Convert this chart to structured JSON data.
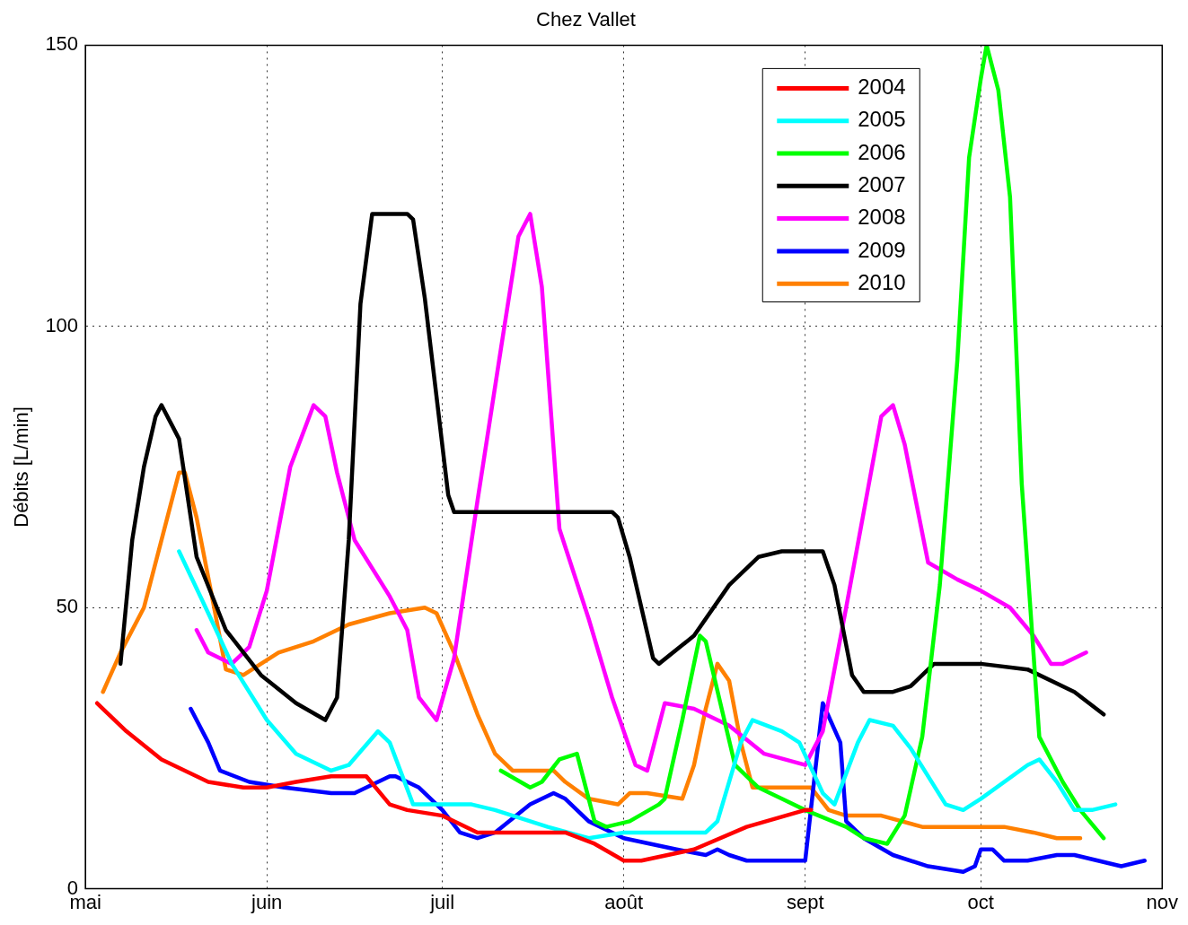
{
  "chart_data": {
    "type": "line",
    "title": "Chez Vallet",
    "ylabel": "Débits [L/min]",
    "xlim": [
      "--05-01",
      "--11-01"
    ],
    "xticks": [
      {
        "value": "--05-01",
        "label": "mai"
      },
      {
        "value": "--06-01",
        "label": "juin"
      },
      {
        "value": "--07-01",
        "label": "juil"
      },
      {
        "value": "--08-01",
        "label": "août"
      },
      {
        "value": "--09-01",
        "label": "sept"
      },
      {
        "value": "--10-01",
        "label": "oct"
      },
      {
        "value": "--11-01",
        "label": "nov"
      }
    ],
    "ylim": [
      0,
      150
    ],
    "yticks": [
      0,
      50,
      100,
      150
    ],
    "grid": true,
    "legend": "top right",
    "marker": "none",
    "line_style": "solid",
    "series": [
      {
        "name": "2004",
        "color": "#ff0000",
        "x": [
          "--05-03",
          "--05-08",
          "--05-14",
          "--05-22",
          "--05-28",
          "--06-01",
          "--06-06",
          "--06-12",
          "--06-18",
          "--06-22",
          "--06-25",
          "--07-01",
          "--07-07",
          "--07-16",
          "--07-22",
          "--07-27",
          "--08-01",
          "--08-04",
          "--08-13",
          "--08-22",
          "--09-01",
          "--09-02"
        ],
        "values": [
          33,
          28,
          23,
          19,
          18,
          18,
          19,
          20,
          20,
          15,
          14,
          13,
          10,
          10,
          10,
          8,
          5,
          5,
          7,
          11,
          14,
          14
        ]
      },
      {
        "name": "2005",
        "color": "#00ffff",
        "x": [
          "--05-17",
          "--05-22",
          "--05-26",
          "--06-01",
          "--06-06",
          "--06-12",
          "--06-15",
          "--06-20",
          "--06-22",
          "--06-26",
          "--07-01",
          "--07-06",
          "--07-10",
          "--07-19",
          "--07-26",
          "--08-01",
          "--08-10",
          "--08-15",
          "--08-17",
          "--08-21",
          "--08-23",
          "--08-28",
          "--08-31",
          "--09-04",
          "--09-06",
          "--09-10",
          "--09-12",
          "--09-16",
          "--09-19",
          "--09-25",
          "--09-28",
          "--10-01",
          "--10-09",
          "--10-11",
          "--10-14",
          "--10-17",
          "--10-20",
          "--10-24"
        ],
        "values": [
          60,
          49,
          40,
          30,
          24,
          21,
          22,
          28,
          26,
          15,
          15,
          15,
          14,
          11,
          9,
          10,
          10,
          10,
          12,
          26,
          30,
          28,
          26,
          17,
          15,
          26,
          30,
          29,
          25,
          15,
          14,
          16,
          22,
          23,
          19,
          14,
          14,
          15
        ]
      },
      {
        "name": "2006",
        "color": "#00ff00",
        "x": [
          "--07-11",
          "--07-16",
          "--07-18",
          "--07-21",
          "--07-24",
          "--07-27",
          "--07-29",
          "--08-02",
          "--08-07",
          "--08-08",
          "--08-11",
          "--08-14",
          "--08-15",
          "--08-20",
          "--08-24",
          "--08-28",
          "--09-01",
          "--09-08",
          "--09-11",
          "--09-15",
          "--09-18",
          "--09-21",
          "--09-24",
          "--09-27",
          "--09-29",
          "--10-01",
          "--10-02",
          "--10-04",
          "--10-06",
          "--10-08",
          "--10-11",
          "--10-15",
          "--10-18",
          "--10-22"
        ],
        "values": [
          21,
          18,
          19,
          23,
          24,
          12,
          11,
          12,
          15,
          16,
          30,
          45,
          44,
          22,
          18,
          16,
          14,
          11,
          9,
          8,
          13,
          27,
          54,
          94,
          130,
          144,
          150,
          142,
          123,
          72,
          27,
          19,
          14,
          9
        ]
      },
      {
        "name": "2007",
        "color": "#000000",
        "x": [
          "--05-07",
          "--05-09",
          "--05-11",
          "--05-13",
          "--05-14",
          "--05-17",
          "--05-20",
          "--05-25",
          "--05-31",
          "--06-06",
          "--06-11",
          "--06-13",
          "--06-15",
          "--06-17",
          "--06-19",
          "--06-25",
          "--06-26",
          "--06-28",
          "--07-02",
          "--07-03",
          "--07-30",
          "--07-31",
          "--08-02",
          "--08-06",
          "--08-07",
          "--08-13",
          "--08-19",
          "--08-24",
          "--08-28",
          "--09-04",
          "--09-06",
          "--09-09",
          "--09-11",
          "--09-16",
          "--09-19",
          "--09-23",
          "--10-01",
          "--10-09",
          "--10-17",
          "--10-22"
        ],
        "values": [
          40,
          62,
          75,
          84,
          86,
          80,
          59,
          46,
          38,
          33,
          30,
          34,
          62,
          104,
          120,
          120,
          119,
          105,
          70,
          67,
          67,
          66,
          59,
          41,
          40,
          45,
          54,
          59,
          60,
          60,
          54,
          38,
          35,
          35,
          36,
          40,
          40,
          39,
          35,
          31
        ]
      },
      {
        "name": "2008",
        "color": "#ff00ff",
        "x": [
          "--05-20",
          "--05-22",
          "--05-26",
          "--05-29",
          "--06-01",
          "--06-05",
          "--06-09",
          "--06-11",
          "--06-13",
          "--06-16",
          "--06-22",
          "--06-25",
          "--06-27",
          "--06-30",
          "--07-03",
          "--07-07",
          "--07-11",
          "--07-14",
          "--07-16",
          "--07-18",
          "--07-21",
          "--07-26",
          "--07-30",
          "--08-03",
          "--08-05",
          "--08-08",
          "--08-13",
          "--08-19",
          "--08-25",
          "--09-01",
          "--09-04",
          "--09-08",
          "--09-11",
          "--09-14",
          "--09-16",
          "--09-18",
          "--09-22",
          "--09-27",
          "--10-01",
          "--10-06",
          "--10-10",
          "--10-13",
          "--10-15",
          "--10-19"
        ],
        "values": [
          46,
          42,
          40,
          43,
          53,
          75,
          86,
          84,
          74,
          62,
          52,
          46,
          34,
          30,
          41,
          69,
          96,
          116,
          120,
          107,
          64,
          48,
          34,
          22,
          21,
          33,
          32,
          29,
          24,
          22,
          28,
          50,
          67,
          84,
          86,
          79,
          58,
          55,
          53,
          50,
          45,
          40,
          40,
          42
        ]
      },
      {
        "name": "2009",
        "color": "#0000ff",
        "x": [
          "--05-19",
          "--05-22",
          "--05-24",
          "--05-29",
          "--06-04",
          "--06-12",
          "--06-16",
          "--06-22",
          "--06-23",
          "--06-27",
          "--07-01",
          "--07-04",
          "--07-07",
          "--07-10",
          "--07-16",
          "--07-20",
          "--07-22",
          "--07-26",
          "--08-01",
          "--08-10",
          "--08-15",
          "--08-17",
          "--08-19",
          "--08-22",
          "--09-01",
          "--09-04",
          "--09-07",
          "--09-08",
          "--09-11",
          "--09-16",
          "--09-22",
          "--09-28",
          "--09-30",
          "--10-01",
          "--10-03",
          "--10-05",
          "--10-09",
          "--10-14",
          "--10-17",
          "--10-21",
          "--10-25",
          "--10-29"
        ],
        "values": [
          32,
          26,
          21,
          19,
          18,
          17,
          17,
          20,
          20,
          18,
          14,
          10,
          9,
          10,
          15,
          17,
          16,
          12,
          9,
          7,
          6,
          7,
          6,
          5,
          5,
          33,
          26,
          12,
          9,
          6,
          4,
          3,
          4,
          7,
          7,
          5,
          5,
          6,
          6,
          5,
          4,
          5
        ]
      },
      {
        "name": "2010",
        "color": "#ff8000",
        "x": [
          "--05-04",
          "--05-07",
          "--05-11",
          "--05-15",
          "--05-17",
          "--05-18",
          "--05-20",
          "--05-23",
          "--05-25",
          "--05-28",
          "--06-03",
          "--06-09",
          "--06-15",
          "--06-22",
          "--06-28",
          "--06-30",
          "--07-03",
          "--07-07",
          "--07-10",
          "--07-13",
          "--07-20",
          "--07-22",
          "--07-26",
          "--07-31",
          "--08-02",
          "--08-05",
          "--08-11",
          "--08-13",
          "--08-15",
          "--08-17",
          "--08-19",
          "--08-21",
          "--08-23",
          "--08-28",
          "--09-02",
          "--09-05",
          "--09-08",
          "--09-14",
          "--09-21",
          "--09-28",
          "--10-05",
          "--10-10",
          "--10-14",
          "--10-18"
        ],
        "values": [
          35,
          42,
          50,
          66,
          74,
          74,
          66,
          50,
          39,
          38,
          42,
          44,
          47,
          49,
          50,
          49,
          42,
          31,
          24,
          21,
          21,
          19,
          16,
          15,
          17,
          17,
          16,
          22,
          32,
          40,
          37,
          26,
          18,
          18,
          18,
          14,
          13,
          13,
          11,
          11,
          11,
          10,
          9,
          9
        ]
      }
    ]
  }
}
